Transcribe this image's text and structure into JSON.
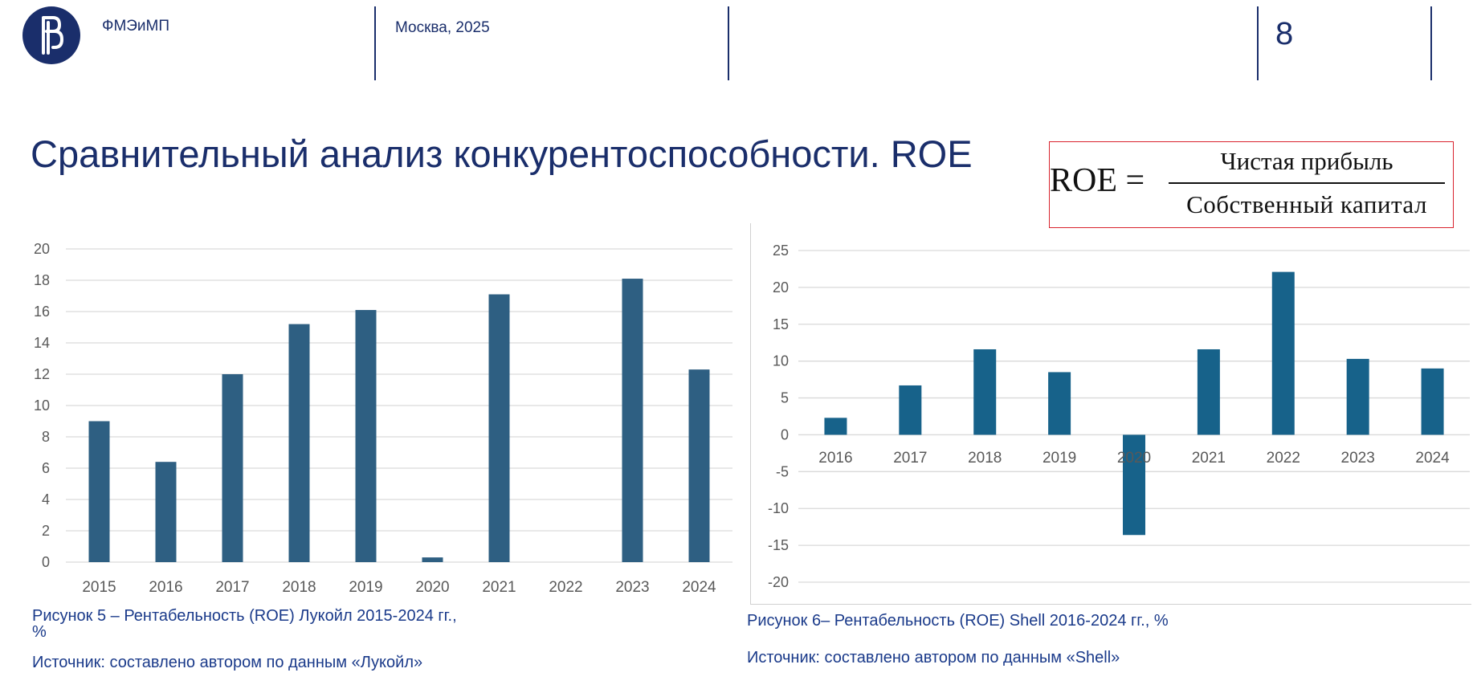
{
  "header": {
    "org": "ФМЭиМП",
    "city_year": "Москва, 2025",
    "page_number": "8"
  },
  "title": "Сравнительный анализ конкурентоспособности. ROE",
  "formula": {
    "lhs": "ROE =",
    "numerator": "Чистая прибыль",
    "denominator": "Собственный капитал"
  },
  "colors": {
    "brand": "#1a2e6b",
    "lukoil_bar": "#2e5f82",
    "shell_bar": "#17628a",
    "formula_border": "#d9232e"
  },
  "chart_data": [
    {
      "type": "bar",
      "categories": [
        "2015",
        "2016",
        "2017",
        "2018",
        "2019",
        "2020",
        "2021",
        "2022",
        "2023",
        "2024"
      ],
      "values": [
        9.0,
        6.4,
        12.0,
        15.2,
        16.1,
        0.3,
        17.1,
        null,
        18.1,
        12.3
      ],
      "title": "",
      "xlabel": "",
      "ylabel": "",
      "ylim": [
        0,
        20
      ],
      "yticks": [
        "0",
        "2",
        "4",
        "6",
        "8",
        "10",
        "12",
        "14",
        "16",
        "18",
        "20"
      ],
      "grid": true
    },
    {
      "type": "bar",
      "categories": [
        "2016",
        "2017",
        "2018",
        "2019",
        "2020",
        "2021",
        "2022",
        "2023",
        "2024"
      ],
      "values": [
        2.3,
        6.7,
        11.6,
        8.5,
        -13.6,
        11.6,
        22.1,
        10.3,
        9.0
      ],
      "title": "",
      "xlabel": "",
      "ylabel": "",
      "ylim": [
        -20,
        25
      ],
      "yticks": [
        "-20",
        "-15",
        "-10",
        "-5",
        "0",
        "5",
        "10",
        "15",
        "20",
        "25"
      ],
      "grid": true
    }
  ],
  "captions": {
    "fig5_line1": "Рисунок 5 – Рентабельность (ROE) Лукойл 2015-2024 гг.,",
    "fig5_line2": "%",
    "fig5_source": "Источник: составлено автором по данным «Лукойл»",
    "fig6": "Рисунок 6– Рентабельность (ROE) Shell  2016-2024 гг., %",
    "fig6_source": "Источник: составлено автором по данным «Shell»"
  }
}
